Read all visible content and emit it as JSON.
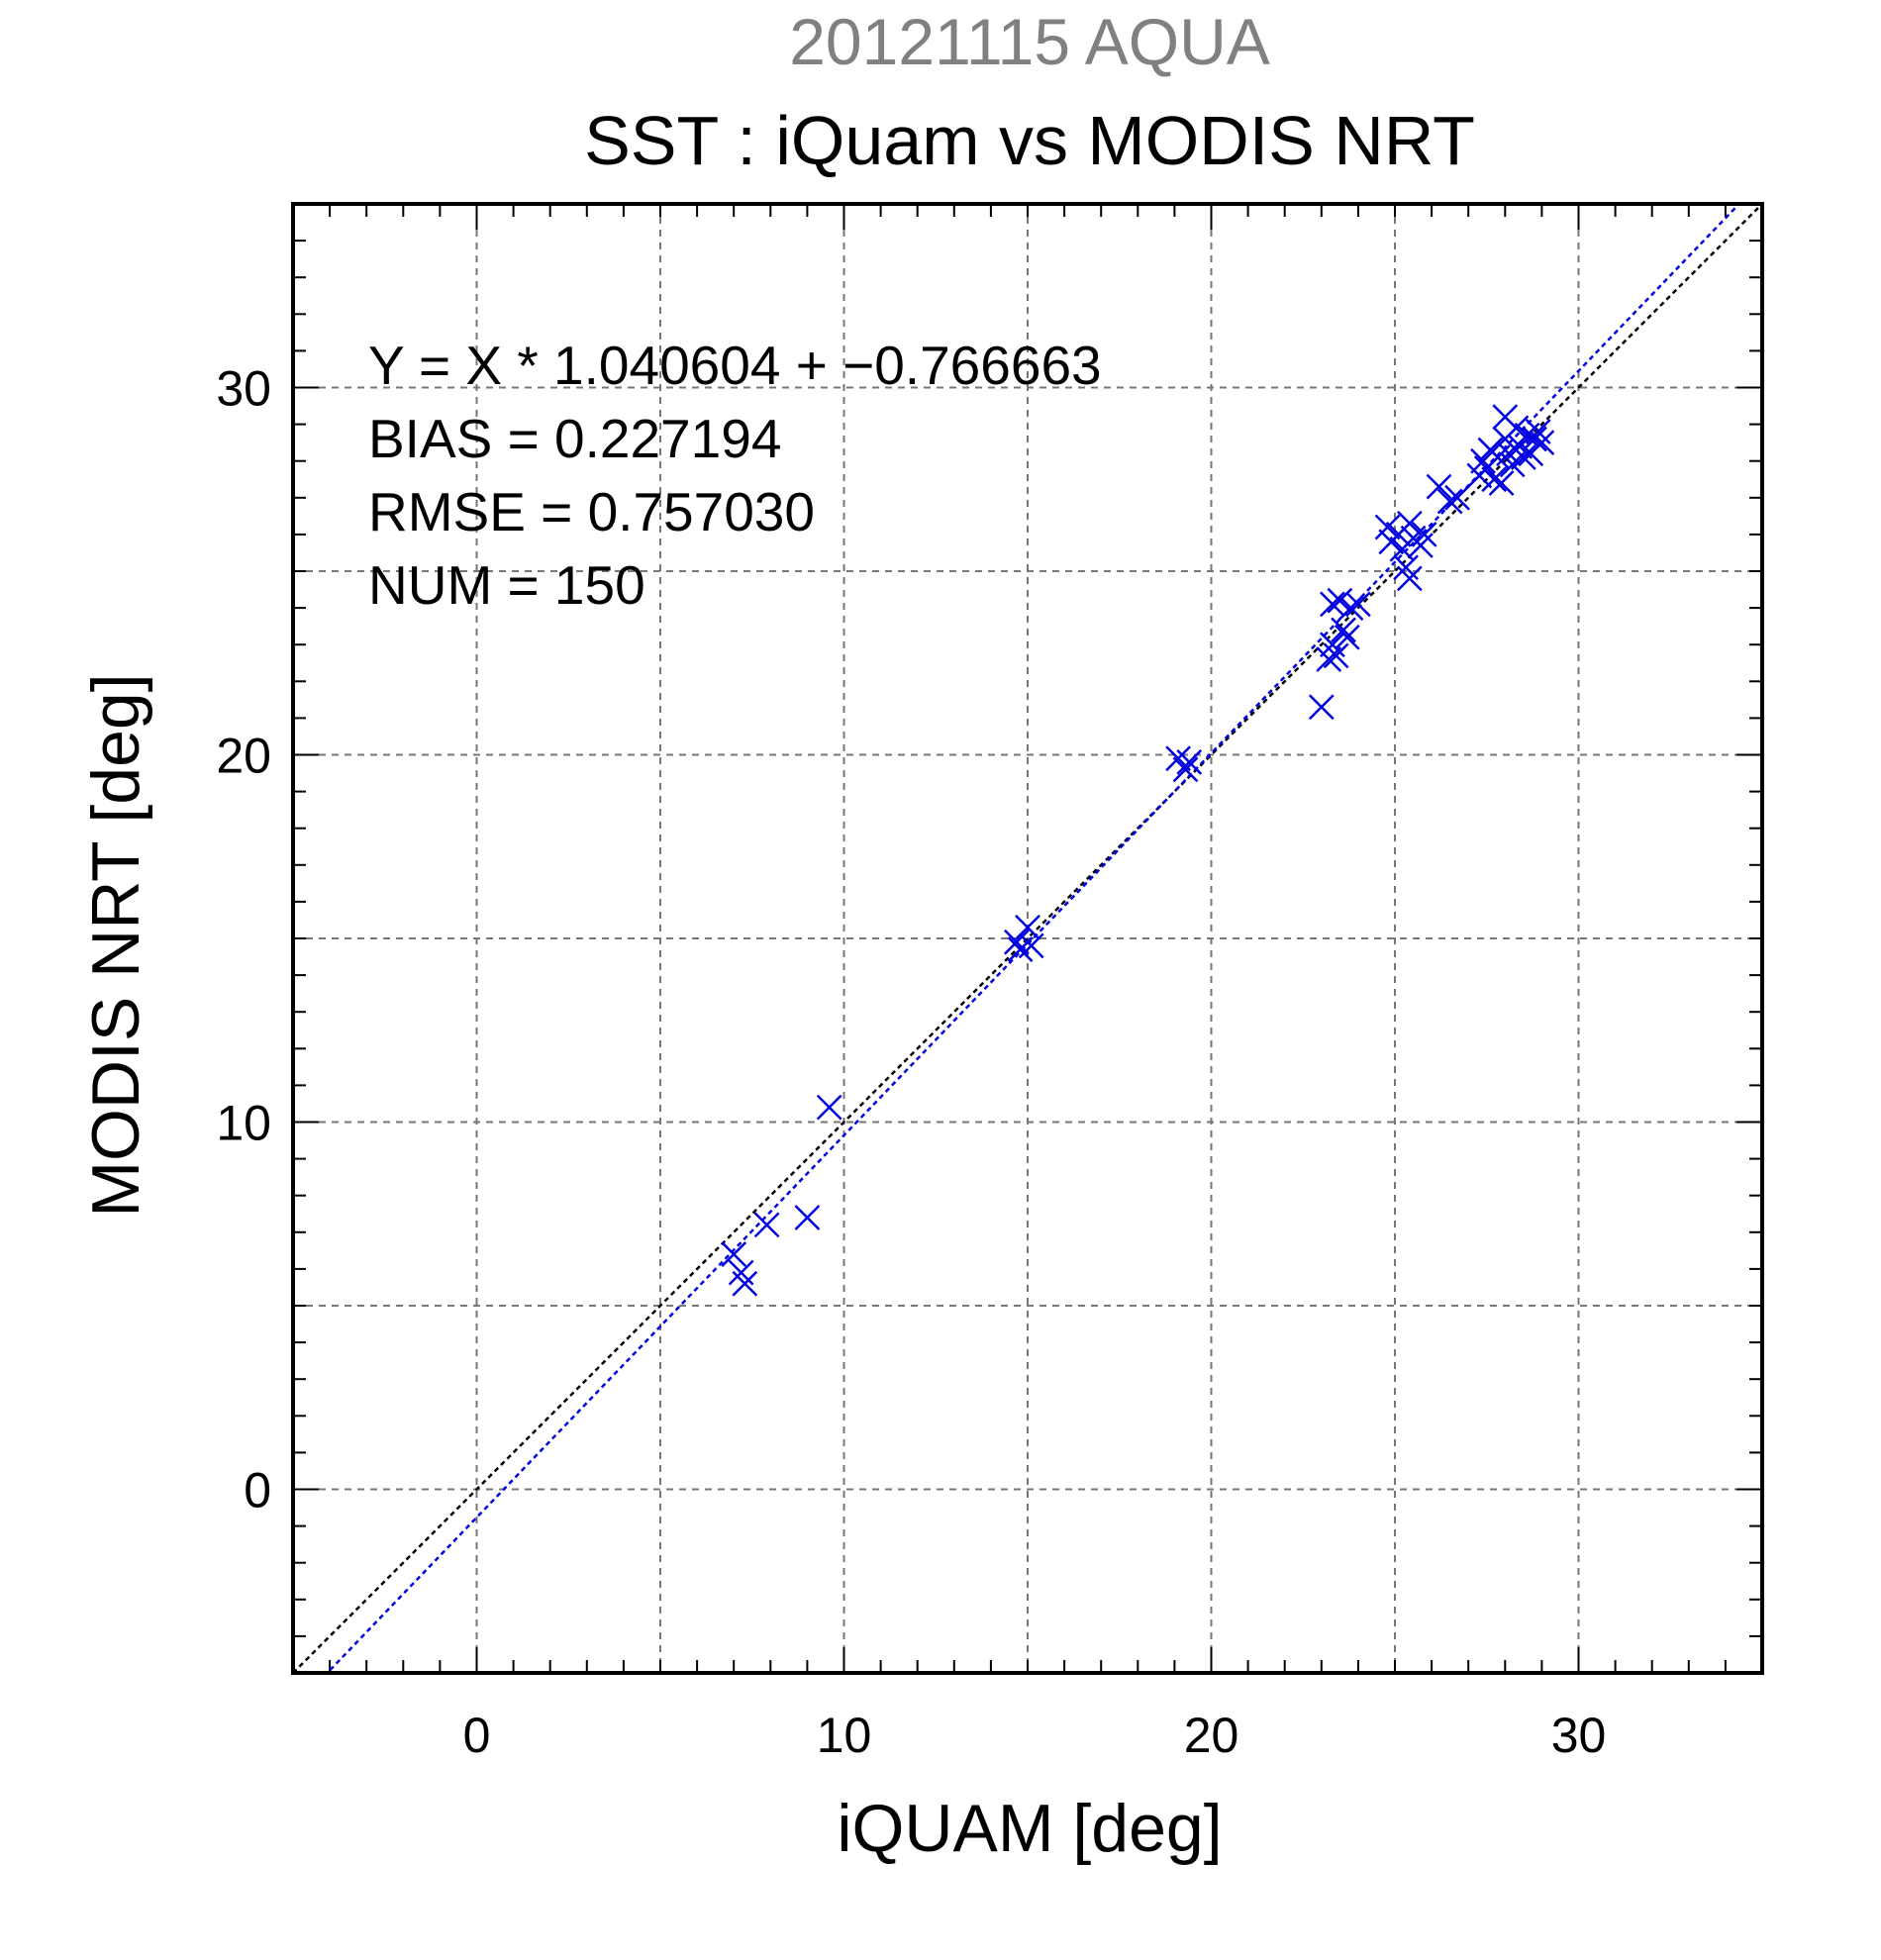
{
  "chart_data": {
    "type": "scatter",
    "supertitle": "20121115 AQUA",
    "title": "SST : iQuam vs MODIS NRT",
    "xlabel": "iQUAM [deg]",
    "ylabel": "MODIS NRT [deg]",
    "xlim": [
      -5,
      35
    ],
    "ylim": [
      -5,
      35
    ],
    "xticks": [
      0,
      10,
      20,
      30
    ],
    "yticks": [
      0,
      10,
      20,
      30
    ],
    "minor_tick_step": 1,
    "grid": true,
    "grid_step": 5,
    "marker": "x",
    "colors": {
      "points": "#0000e0",
      "fit_line": "#0000e0",
      "identity_line": "#000000",
      "supertitle": "#808080",
      "grid": "#777777"
    },
    "annotations": [
      "Y = X * 1.040604 + −0.766663",
      "BIAS = 0.227194",
      "RMSE = 0.757030",
      "NUM = 150"
    ],
    "fit": {
      "slope": 1.040604,
      "intercept": -0.766663
    },
    "identity": {
      "slope": 1,
      "intercept": 0
    },
    "points": [
      [
        7.0,
        6.4
      ],
      [
        7.2,
        5.9
      ],
      [
        7.3,
        5.6
      ],
      [
        7.9,
        7.2
      ],
      [
        9.0,
        7.4
      ],
      [
        9.6,
        10.4
      ],
      [
        14.7,
        14.9
      ],
      [
        14.8,
        14.7
      ],
      [
        15.0,
        15.3
      ],
      [
        15.1,
        14.8
      ],
      [
        19.1,
        19.9
      ],
      [
        19.3,
        19.6
      ],
      [
        19.4,
        19.8
      ],
      [
        23.0,
        21.3
      ],
      [
        23.2,
        22.6
      ],
      [
        23.3,
        23.0
      ],
      [
        23.3,
        24.1
      ],
      [
        23.4,
        22.7
      ],
      [
        23.5,
        24.2
      ],
      [
        23.6,
        23.4
      ],
      [
        23.7,
        23.2
      ],
      [
        23.8,
        24.0
      ],
      [
        24.0,
        24.1
      ],
      [
        24.8,
        26.2
      ],
      [
        24.9,
        25.8
      ],
      [
        25.1,
        26.0
      ],
      [
        25.2,
        25.6
      ],
      [
        25.3,
        25.1
      ],
      [
        25.4,
        24.8
      ],
      [
        25.4,
        26.3
      ],
      [
        25.5,
        25.9
      ],
      [
        25.7,
        25.7
      ],
      [
        25.8,
        26.0
      ],
      [
        26.2,
        27.3
      ],
      [
        26.5,
        26.9
      ],
      [
        26.7,
        27.0
      ],
      [
        27.3,
        27.6
      ],
      [
        27.4,
        28.0
      ],
      [
        27.5,
        27.8
      ],
      [
        27.6,
        28.3
      ],
      [
        27.7,
        27.5
      ],
      [
        27.8,
        28.1
      ],
      [
        27.9,
        27.4
      ],
      [
        28.0,
        28.6
      ],
      [
        28.0,
        29.2
      ],
      [
        28.1,
        28.2
      ],
      [
        28.2,
        27.9
      ],
      [
        28.3,
        28.9
      ],
      [
        28.4,
        28.4
      ],
      [
        28.5,
        28.1
      ],
      [
        28.6,
        28.7
      ],
      [
        28.7,
        28.2
      ],
      [
        28.8,
        28.6
      ],
      [
        28.9,
        28.8
      ],
      [
        29.0,
        28.5
      ]
    ]
  }
}
